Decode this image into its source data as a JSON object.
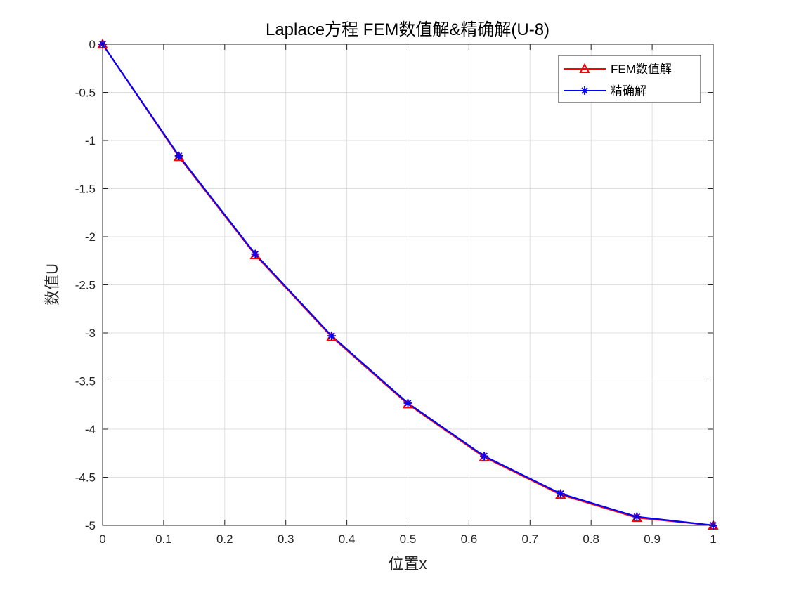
{
  "chart_data": {
    "type": "line",
    "title": "Laplace方程 FEM数值解&精确解(U-8)",
    "xlabel": "位置x",
    "ylabel": "数值U",
    "xlim": [
      0,
      1
    ],
    "ylim": [
      -5,
      0
    ],
    "xticks": [
      0,
      0.1,
      0.2,
      0.3,
      0.4,
      0.5,
      0.6,
      0.7,
      0.8,
      0.9,
      1
    ],
    "xtick_labels": [
      "0",
      "0.1",
      "0.2",
      "0.3",
      "0.4",
      "0.5",
      "0.6",
      "0.7",
      "0.8",
      "0.9",
      "1"
    ],
    "yticks": [
      0,
      -0.5,
      -1,
      -1.5,
      -2,
      -2.5,
      -3,
      -3.5,
      -4,
      -4.5,
      -5
    ],
    "ytick_labels": [
      "0",
      "-0.5",
      "-1",
      "-1.5",
      "-2",
      "-2.5",
      "-3",
      "-3.5",
      "-4",
      "-4.5",
      "-5"
    ],
    "grid": true,
    "legend_position": "top-right",
    "x": [
      0,
      0.125,
      0.25,
      0.375,
      0.5,
      0.625,
      0.75,
      0.875,
      1
    ],
    "series": [
      {
        "name": "FEM数值解",
        "color": "#ff0000",
        "marker": "triangle",
        "values": [
          0,
          -1.17,
          -2.19,
          -3.04,
          -3.74,
          -4.29,
          -4.68,
          -4.92,
          -5.0
        ]
      },
      {
        "name": "精确解",
        "color": "#0000ff",
        "marker": "asterisk",
        "values": [
          0,
          -1.16,
          -2.18,
          -3.03,
          -3.73,
          -4.28,
          -4.67,
          -4.91,
          -5.0
        ]
      }
    ]
  }
}
